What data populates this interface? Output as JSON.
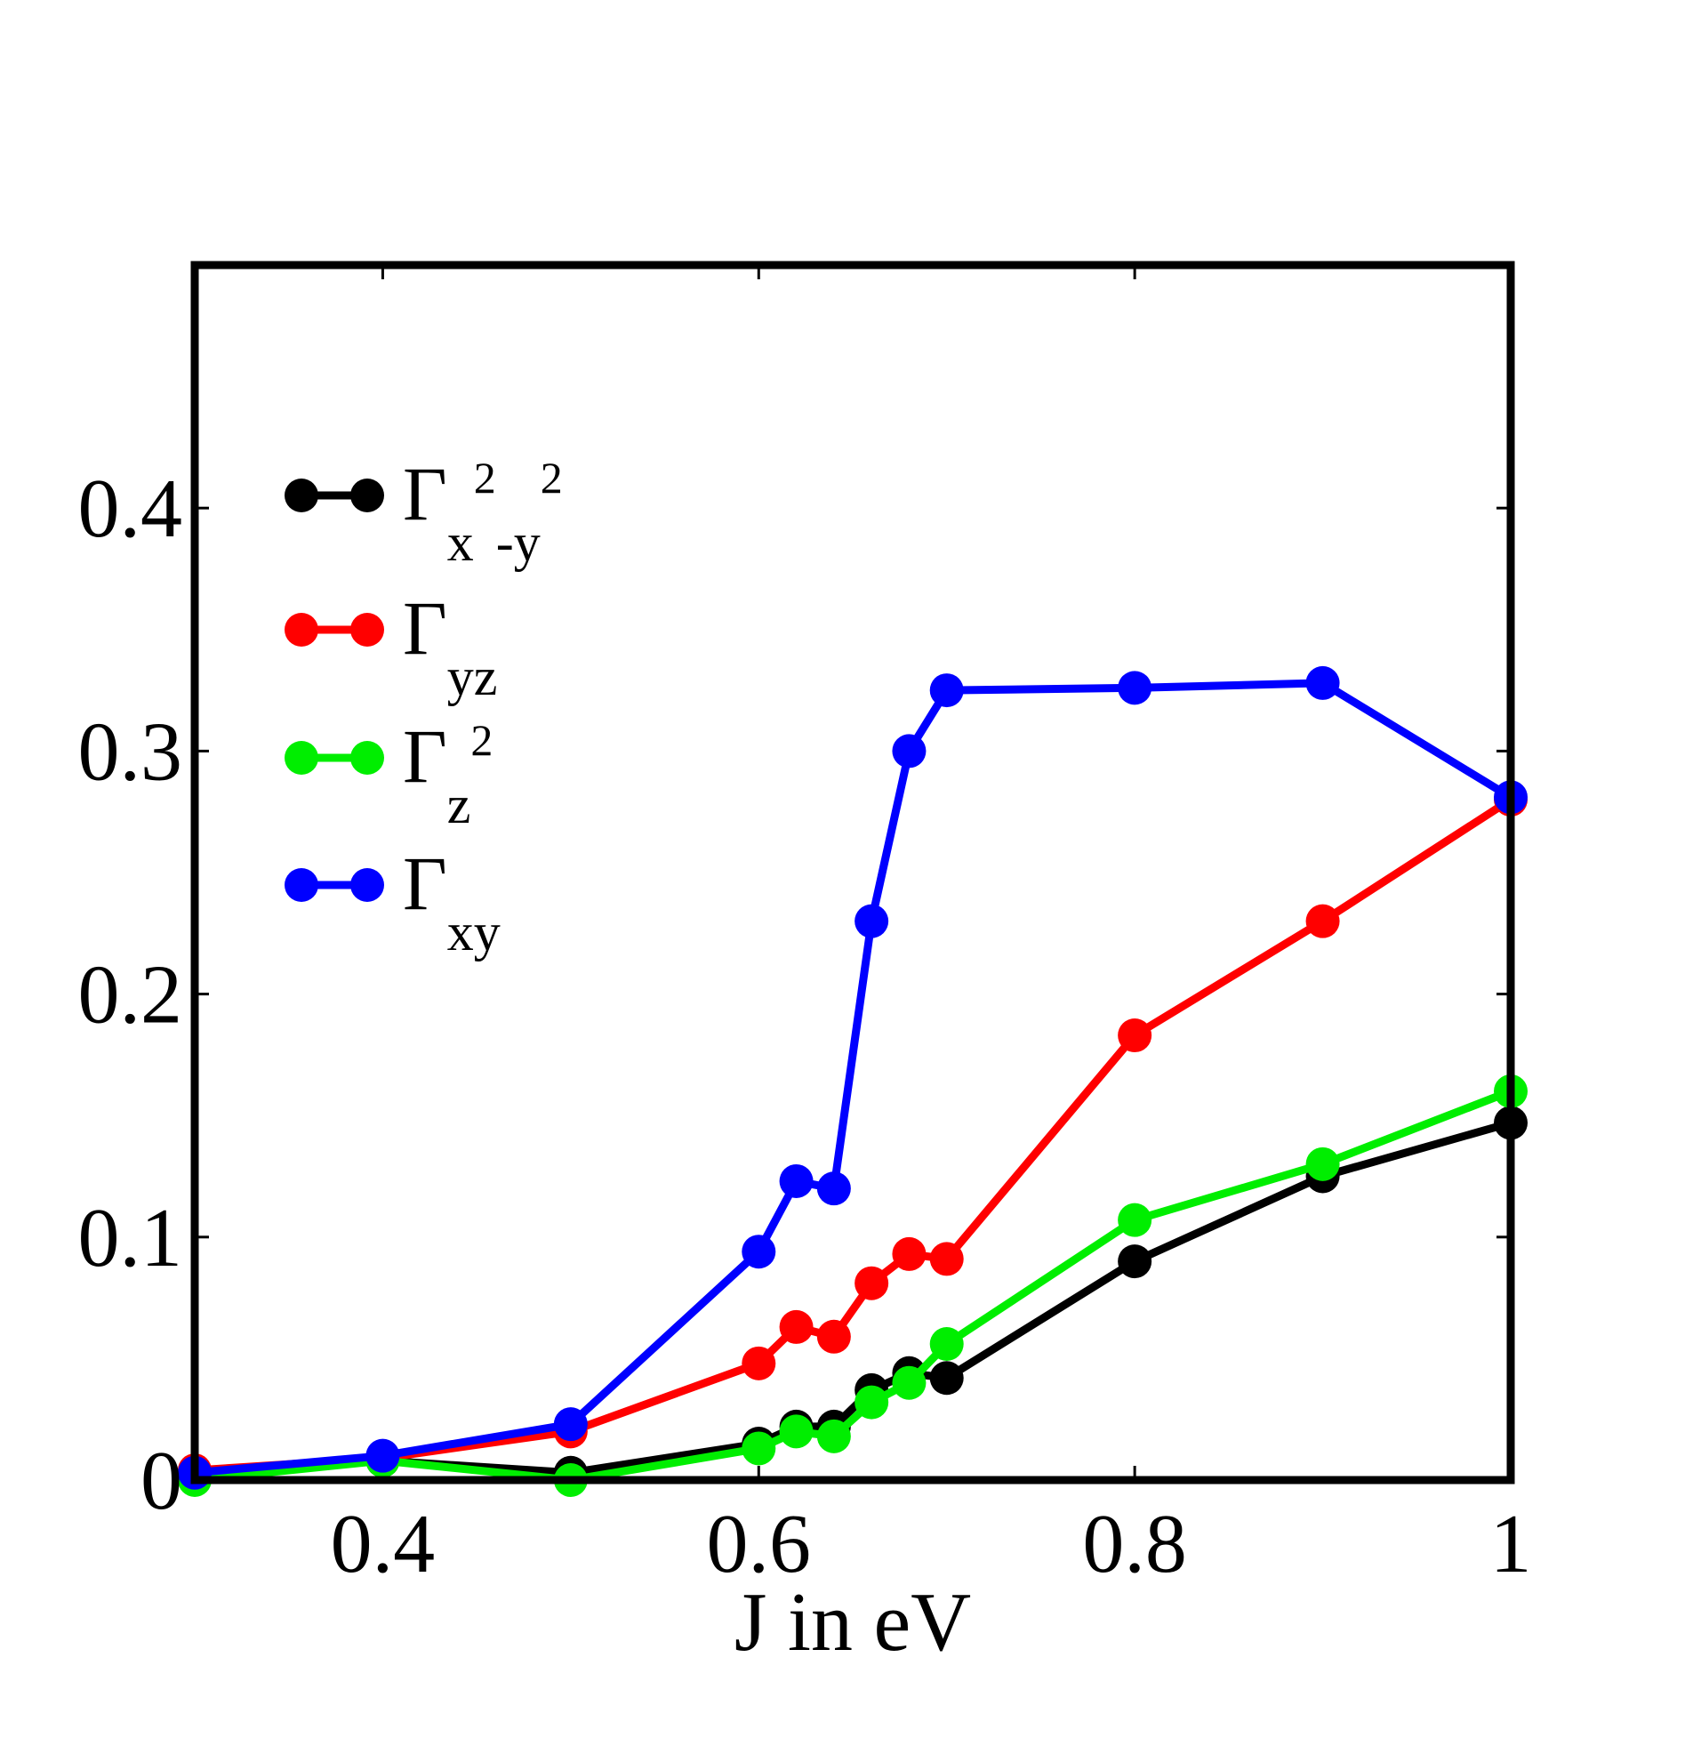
{
  "chart_data": {
    "type": "line",
    "title": "",
    "xlabel": "J in eV",
    "ylabel": "",
    "xlim": [
      0.3,
      1.0
    ],
    "ylim": [
      0,
      0.5
    ],
    "xticks": [
      0.4,
      0.6,
      0.8,
      1.0
    ],
    "xtick_labels": [
      "0.4",
      "0.6",
      "0.8",
      "1"
    ],
    "yticks": [
      0,
      0.1,
      0.2,
      0.3,
      0.4
    ],
    "ytick_labels": [
      "0",
      "0.1",
      "0.2",
      "0.3",
      "0.4"
    ],
    "grid": false,
    "legend_position": "top-left",
    "series": [
      {
        "name": "Γx²-y²",
        "symbol": "Γ",
        "subscript": "x",
        "superscript1": "2",
        "mid": "-y",
        "superscript2": "2",
        "color": "#000000",
        "x": [
          0.3,
          0.4,
          0.5,
          0.6,
          0.62,
          0.64,
          0.66,
          0.68,
          0.7,
          0.8,
          0.9,
          1.0
        ],
        "y": [
          0.002,
          0.008,
          0.003,
          0.015,
          0.022,
          0.022,
          0.037,
          0.044,
          0.042,
          0.09,
          0.125,
          0.147
        ]
      },
      {
        "name": "Γyz",
        "symbol": "Γ",
        "subscript": "yz",
        "color": "#ff0000",
        "x": [
          0.3,
          0.4,
          0.5,
          0.6,
          0.62,
          0.64,
          0.66,
          0.68,
          0.7,
          0.8,
          0.9,
          1.0
        ],
        "y": [
          0.004,
          0.009,
          0.02,
          0.048,
          0.063,
          0.059,
          0.081,
          0.093,
          0.091,
          0.183,
          0.23,
          0.28
        ]
      },
      {
        "name": "Γz²",
        "symbol": "Γ",
        "subscript": "z",
        "superscript1": "2",
        "color": "#00ee00",
        "x": [
          0.3,
          0.4,
          0.5,
          0.6,
          0.62,
          0.64,
          0.66,
          0.68,
          0.7,
          0.8,
          0.9,
          1.0
        ],
        "y": [
          0.0,
          0.008,
          0.0,
          0.013,
          0.02,
          0.018,
          0.032,
          0.04,
          0.056,
          0.107,
          0.13,
          0.16
        ]
      },
      {
        "name": "Γxy",
        "symbol": "Γ",
        "subscript": "xy",
        "color": "#0000ff",
        "x": [
          0.3,
          0.4,
          0.5,
          0.6,
          0.62,
          0.64,
          0.66,
          0.68,
          0.7,
          0.8,
          0.9,
          1.0
        ],
        "y": [
          0.003,
          0.01,
          0.023,
          0.094,
          0.123,
          0.12,
          0.23,
          0.3,
          0.325,
          0.326,
          0.328,
          0.281
        ]
      }
    ]
  }
}
